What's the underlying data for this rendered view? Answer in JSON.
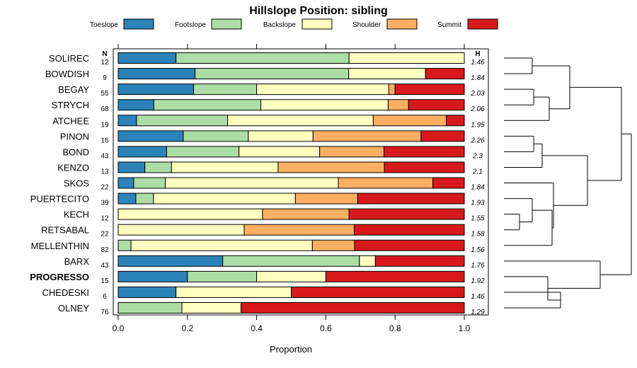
{
  "chart_data": {
    "type": "stacked-bar",
    "title": "Hillslope Position: sibling",
    "xlabel": "Proportion",
    "xlim": [
      0,
      1
    ],
    "xticks": [
      "0.0",
      "0.2",
      "0.4",
      "0.6",
      "0.8",
      "1.0"
    ],
    "xtick_values": [
      0,
      0.2,
      0.4,
      0.6,
      0.8,
      1.0
    ],
    "n_header": "N",
    "h_header": "H",
    "legend": [
      {
        "name": "Toeslope",
        "color": "#2b83ba"
      },
      {
        "name": "Footslope",
        "color": "#abdda4"
      },
      {
        "name": "Backslope",
        "color": "#ffffbf"
      },
      {
        "name": "Shoulder",
        "color": "#fdae61"
      },
      {
        "name": "Summit",
        "color": "#d7191c"
      }
    ],
    "rows": [
      {
        "name": "SOLIREC",
        "n": "12",
        "h": "1.46",
        "bold": false,
        "values": [
          0.167,
          0.5,
          0.333,
          0.0,
          0.0
        ]
      },
      {
        "name": "BOWDISH",
        "n": "9",
        "h": "1.84",
        "bold": false,
        "values": [
          0.222,
          0.444,
          0.222,
          0.0,
          0.112
        ]
      },
      {
        "name": "BEGAY",
        "n": "55",
        "h": "2.03",
        "bold": false,
        "values": [
          0.218,
          0.182,
          0.382,
          0.018,
          0.2
        ]
      },
      {
        "name": "STRYCH",
        "n": "68",
        "h": "2.06",
        "bold": false,
        "values": [
          0.103,
          0.309,
          0.368,
          0.059,
          0.161
        ]
      },
      {
        "name": "ATCHEE",
        "n": "19",
        "h": "1.95",
        "bold": false,
        "values": [
          0.053,
          0.263,
          0.421,
          0.211,
          0.052
        ]
      },
      {
        "name": "PINON",
        "n": "16",
        "h": "2.26",
        "bold": false,
        "values": [
          0.188,
          0.188,
          0.187,
          0.312,
          0.125
        ]
      },
      {
        "name": "BOND",
        "n": "43",
        "h": "2.3",
        "bold": false,
        "values": [
          0.14,
          0.209,
          0.233,
          0.186,
          0.232
        ]
      },
      {
        "name": "KENZO",
        "n": "13",
        "h": "2.1",
        "bold": false,
        "values": [
          0.077,
          0.077,
          0.308,
          0.307,
          0.231
        ]
      },
      {
        "name": "SKOS",
        "n": "22",
        "h": "1.84",
        "bold": false,
        "values": [
          0.045,
          0.091,
          0.5,
          0.273,
          0.091
        ]
      },
      {
        "name": "PUERTECITO",
        "n": "39",
        "h": "1.93",
        "bold": false,
        "values": [
          0.051,
          0.051,
          0.41,
          0.18,
          0.308
        ]
      },
      {
        "name": "KECH",
        "n": "12",
        "h": "1.55",
        "bold": false,
        "values": [
          0.0,
          0.0,
          0.417,
          0.25,
          0.333
        ]
      },
      {
        "name": "RETSABAL",
        "n": "22",
        "h": "1.58",
        "bold": false,
        "values": [
          0.0,
          0.0,
          0.364,
          0.318,
          0.318
        ]
      },
      {
        "name": "MELLENTHIN",
        "n": "82",
        "h": "1.56",
        "bold": false,
        "values": [
          0.0,
          0.037,
          0.524,
          0.122,
          0.317
        ]
      },
      {
        "name": "BARX",
        "n": "43",
        "h": "1.76",
        "bold": false,
        "values": [
          0.302,
          0.395,
          0.046,
          0.0,
          0.257
        ]
      },
      {
        "name": "PROGRESSO",
        "n": "15",
        "h": "1.92",
        "bold": true,
        "values": [
          0.2,
          0.2,
          0.2,
          0.0,
          0.4
        ]
      },
      {
        "name": "CHEDESKI",
        "n": "6",
        "h": "1.46",
        "bold": false,
        "values": [
          0.167,
          0.0,
          0.333,
          0.0,
          0.5
        ]
      },
      {
        "name": "OLNEY",
        "n": "76",
        "h": "1.29",
        "bold": false,
        "values": [
          0.0,
          0.184,
          0.171,
          0.0,
          0.645
        ]
      }
    ]
  }
}
